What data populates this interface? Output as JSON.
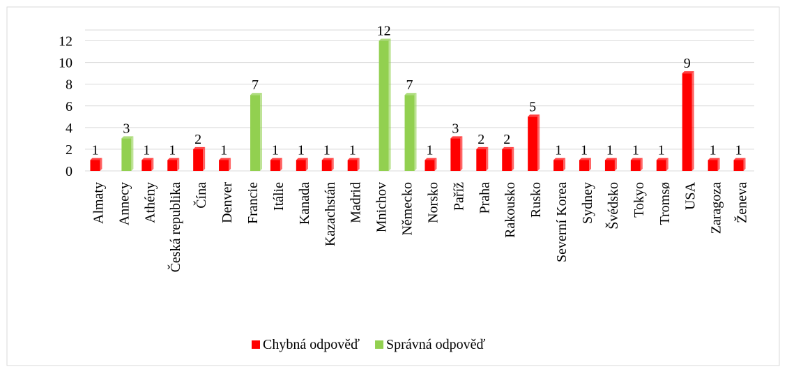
{
  "chart_data": {
    "type": "bar",
    "categories": [
      "Almaty",
      "Annecy",
      "Athény",
      "Česká republika",
      "Čína",
      "Denver",
      "Francie",
      "Itálie",
      "Kanada",
      "Kazachstán",
      "Madrid",
      "Mnichov",
      "Německo",
      "Norsko",
      "Paříž",
      "Praha",
      "Rakousko",
      "Rusko",
      "Severní Korea",
      "Sydney",
      "Švédsko",
      "Tokyo",
      "Tromsø",
      "USA",
      "Zaragoza",
      "Ženeva"
    ],
    "series": [
      {
        "name": "Chybná odpověď",
        "color": "#ff0000",
        "values": [
          1,
          null,
          1,
          1,
          2,
          1,
          null,
          1,
          1,
          1,
          1,
          null,
          null,
          1,
          3,
          2,
          2,
          5,
          1,
          1,
          1,
          1,
          1,
          9,
          1,
          1
        ]
      },
      {
        "name": "Správná odpověď",
        "color": "#92d050",
        "values": [
          null,
          3,
          null,
          null,
          null,
          null,
          7,
          null,
          null,
          null,
          null,
          12,
          7,
          null,
          null,
          null,
          null,
          null,
          null,
          null,
          null,
          null,
          null,
          null,
          null,
          null
        ]
      }
    ],
    "ylim": [
      0,
      13
    ],
    "yticks": [
      0,
      2,
      4,
      6,
      8,
      10,
      12
    ],
    "grid": true,
    "legend": "bottom"
  }
}
